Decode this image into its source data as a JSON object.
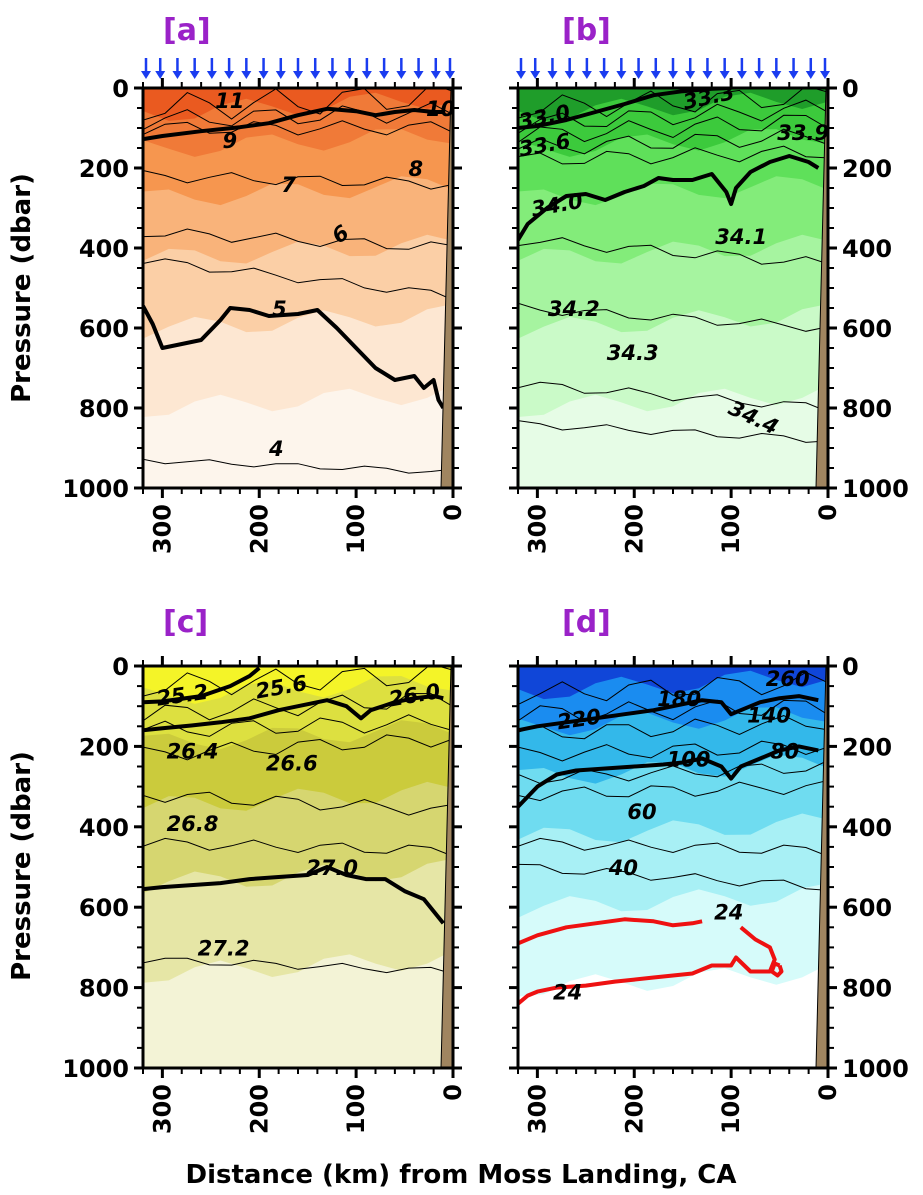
{
  "figure": {
    "xlabel": "Distance (km) from Moss Landing, CA",
    "ylabel": "Pressure (dbar)"
  },
  "chart_data": [
    {
      "type": "heatmap",
      "panel": "[a]",
      "x_ticks": [
        "300",
        "200",
        "100",
        "0"
      ],
      "y_ticks": [
        "0",
        "200",
        "400",
        "600",
        "800",
        "1000"
      ],
      "xlim": [
        320,
        0
      ],
      "ylim": [
        0,
        1000
      ],
      "colors": [
        "#fdf5ec",
        "#fde7d2",
        "#fbcfa6",
        "#f9b37a",
        "#f6964f",
        "#f07a38",
        "#ea5a20"
      ],
      "contour_labels": [
        "11",
        "10",
        "9",
        "8",
        "7",
        "6",
        "5",
        "4"
      ],
      "bold_contours": [
        {
          "label": "10",
          "points": [
            [
              320,
              128
            ],
            [
              300,
              120
            ],
            [
              260,
              108
            ],
            [
              220,
              98
            ],
            [
              190,
              88
            ],
            [
              160,
              68
            ],
            [
              130,
              52
            ],
            [
              100,
              58
            ],
            [
              80,
              68
            ],
            [
              60,
              60
            ],
            [
              40,
              55
            ],
            [
              20,
              60
            ],
            [
              10,
              60
            ]
          ]
        },
        {
          "label": "5",
          "points": [
            [
              320,
              545
            ],
            [
              310,
              590
            ],
            [
              300,
              650
            ],
            [
              280,
              640
            ],
            [
              260,
              630
            ],
            [
              240,
              580
            ],
            [
              230,
              550
            ],
            [
              210,
              555
            ],
            [
              190,
              570
            ],
            [
              160,
              565
            ],
            [
              140,
              555
            ],
            [
              120,
              600
            ],
            [
              100,
              650
            ],
            [
              80,
              700
            ],
            [
              60,
              730
            ],
            [
              40,
              720
            ],
            [
              30,
              750
            ],
            [
              20,
              730
            ],
            [
              15,
              780
            ],
            [
              10,
              800
            ]
          ]
        }
      ],
      "shows_station_arrows": true
    },
    {
      "type": "heatmap",
      "panel": "[b]",
      "x_ticks": [
        "300",
        "200",
        "100",
        "0"
      ],
      "y_ticks": [
        "0",
        "200",
        "400",
        "600",
        "800",
        "1000"
      ],
      "xlim": [
        320,
        0
      ],
      "ylim": [
        0,
        1000
      ],
      "colors": [
        "#e6fce6",
        "#cafac8",
        "#a6f4a0",
        "#83ec7a",
        "#5fe05a",
        "#3cca3c",
        "#1f9d2a"
      ],
      "contour_labels": [
        "33.3",
        "33.0",
        "33.6",
        "33.9",
        "34.0",
        "34.1",
        "34.2",
        "34.3",
        "34.4"
      ],
      "bold_contours": [
        {
          "label": "33.0",
          "points": [
            [
              320,
              100
            ],
            [
              300,
              95
            ],
            [
              270,
              80
            ],
            [
              240,
              60
            ],
            [
              210,
              40
            ],
            [
              180,
              18
            ],
            [
              150,
              8
            ],
            [
              120,
              2
            ],
            [
              100,
              0
            ]
          ]
        },
        {
          "label": "34.0",
          "points": [
            [
              320,
              380
            ],
            [
              310,
              340
            ],
            [
              290,
              300
            ],
            [
              270,
              270
            ],
            [
              250,
              265
            ],
            [
              230,
              280
            ],
            [
              220,
              270
            ],
            [
              210,
              260
            ],
            [
              190,
              245
            ],
            [
              175,
              225
            ],
            [
              160,
              230
            ],
            [
              140,
              230
            ],
            [
              120,
              215
            ],
            [
              105,
              260
            ],
            [
              100,
              290
            ],
            [
              95,
              250
            ],
            [
              80,
              210
            ],
            [
              60,
              185
            ],
            [
              40,
              170
            ],
            [
              20,
              185
            ],
            [
              10,
              200
            ]
          ]
        }
      ],
      "shows_station_arrows": true
    },
    {
      "type": "heatmap",
      "panel": "[c]",
      "x_ticks": [
        "300",
        "200",
        "100",
        "0"
      ],
      "y_ticks": [
        "0",
        "200",
        "400",
        "600",
        "800",
        "1000"
      ],
      "xlim": [
        320,
        0
      ],
      "ylim": [
        0,
        1000
      ],
      "colors": [
        "#f3f3d6",
        "#e6e6a6",
        "#d6d670",
        "#cbcb3c",
        "#dde040",
        "#f4f428"
      ],
      "contour_labels": [
        "25.2",
        "25.6",
        "26.0",
        "26.4",
        "26.6",
        "26.8",
        "27.0",
        "27.2"
      ],
      "bold_contours": [
        {
          "label": "25.6",
          "points": [
            [
              320,
              90
            ],
            [
              300,
              88
            ],
            [
              260,
              75
            ],
            [
              230,
              50
            ],
            [
              210,
              25
            ],
            [
              200,
              5
            ]
          ]
        },
        {
          "label": "26.0",
          "points": [
            [
              320,
              160
            ],
            [
              300,
              155
            ],
            [
              270,
              148
            ],
            [
              240,
              140
            ],
            [
              210,
              130
            ],
            [
              180,
              110
            ],
            [
              150,
              95
            ],
            [
              130,
              85
            ],
            [
              110,
              100
            ],
            [
              95,
              130
            ],
            [
              85,
              110
            ],
            [
              60,
              90
            ],
            [
              40,
              80
            ],
            [
              20,
              75
            ],
            [
              10,
              80
            ]
          ]
        },
        {
          "label": "27.0",
          "points": [
            [
              320,
              555
            ],
            [
              300,
              550
            ],
            [
              270,
              545
            ],
            [
              240,
              540
            ],
            [
              210,
              530
            ],
            [
              180,
              525
            ],
            [
              150,
              520
            ],
            [
              130,
              500
            ],
            [
              110,
              520
            ],
            [
              90,
              530
            ],
            [
              70,
              530
            ],
            [
              50,
              560
            ],
            [
              30,
              580
            ],
            [
              20,
              610
            ],
            [
              10,
              640
            ]
          ]
        }
      ],
      "shows_station_arrows": false
    },
    {
      "type": "heatmap",
      "panel": "[d]",
      "x_ticks": [
        "300",
        "200",
        "100",
        "0"
      ],
      "y_ticks": [
        "0",
        "200",
        "400",
        "600",
        "800",
        "1000"
      ],
      "xlim": [
        320,
        0
      ],
      "ylim": [
        0,
        1000
      ],
      "colors": [
        "#ffffff",
        "#d6fbfa",
        "#a8f0f5",
        "#6fdcf0",
        "#33b8ea",
        "#1a8cf0",
        "#1046d8"
      ],
      "contour_labels": [
        "260",
        "220",
        "180",
        "140",
        "100",
        "80",
        "60",
        "40",
        "24",
        "24"
      ],
      "bold_contours": [
        {
          "label": "140",
          "points": [
            [
              320,
              160
            ],
            [
              300,
              150
            ],
            [
              270,
              140
            ],
            [
              240,
              130
            ],
            [
              210,
              120
            ],
            [
              180,
              110
            ],
            [
              150,
              95
            ],
            [
              130,
              85
            ],
            [
              110,
              90
            ],
            [
              100,
              120
            ],
            [
              90,
              110
            ],
            [
              70,
              90
            ],
            [
              50,
              80
            ],
            [
              30,
              75
            ],
            [
              10,
              85
            ]
          ]
        },
        {
          "label": "100",
          "points": [
            [
              320,
              350
            ],
            [
              300,
              300
            ],
            [
              280,
              270
            ],
            [
              260,
              260
            ],
            [
              230,
              255
            ],
            [
              200,
              250
            ],
            [
              170,
              245
            ],
            [
              150,
              240
            ],
            [
              130,
              230
            ],
            [
              110,
              250
            ],
            [
              100,
              280
            ],
            [
              90,
              250
            ],
            [
              70,
              230
            ],
            [
              50,
              210
            ],
            [
              30,
              200
            ],
            [
              10,
              210
            ]
          ]
        }
      ],
      "red_contour_value": "24",
      "red_contours": [
        [
          [
            320,
            690
          ],
          [
            300,
            670
          ],
          [
            270,
            650
          ],
          [
            240,
            640
          ],
          [
            210,
            630
          ],
          [
            180,
            635
          ],
          [
            160,
            645
          ],
          [
            140,
            640
          ],
          [
            130,
            635
          ]
        ],
        [
          [
            320,
            840
          ],
          [
            310,
            820
          ],
          [
            300,
            810
          ],
          [
            280,
            800
          ],
          [
            250,
            795
          ],
          [
            220,
            785
          ],
          [
            200,
            780
          ],
          [
            180,
            775
          ],
          [
            160,
            770
          ],
          [
            140,
            765
          ],
          [
            120,
            745
          ],
          [
            100,
            745
          ],
          [
            95,
            725
          ],
          [
            80,
            760
          ],
          [
            60,
            760
          ],
          [
            55,
            730
          ],
          [
            60,
            700
          ],
          [
            75,
            680
          ],
          [
            90,
            650
          ]
        ],
        [
          [
            50,
            745
          ],
          [
            55,
            740
          ],
          [
            58,
            760
          ],
          [
            52,
            770
          ],
          [
            48,
            760
          ],
          [
            50,
            745
          ]
        ]
      ],
      "shows_station_arrows": false
    }
  ]
}
